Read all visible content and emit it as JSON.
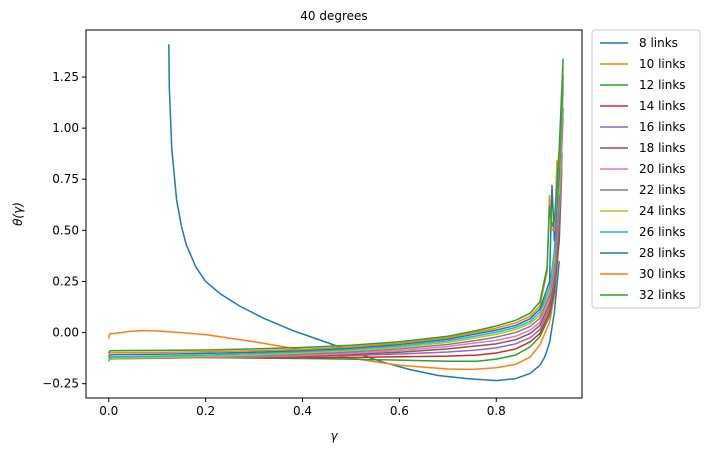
{
  "chart_data": {
    "type": "line",
    "title": "40 degrees",
    "xlabel": "γ",
    "ylabel": "θ(γ)",
    "xlim": [
      -0.047,
      0.977
    ],
    "ylim": [
      -0.32,
      1.48
    ],
    "xticks": [
      0.0,
      0.2,
      0.4,
      0.6,
      0.8
    ],
    "xtick_labels": [
      "0.0",
      "0.2",
      "0.4",
      "0.6",
      "0.8"
    ],
    "yticks": [
      -0.25,
      0.0,
      0.25,
      0.5,
      0.75,
      1.0,
      1.25
    ],
    "ytick_labels": [
      "−0.25",
      "0.00",
      "0.25",
      "0.50",
      "0.75",
      "1.00",
      "1.25"
    ],
    "grid": false,
    "legend_placement": "outside right, top",
    "series": [
      {
        "name": "8 links",
        "color": "#1f77b4",
        "x": [
          0.124,
          0.125,
          0.13,
          0.14,
          0.15,
          0.16,
          0.18,
          0.2,
          0.23,
          0.27,
          0.32,
          0.38,
          0.44,
          0.5,
          0.56,
          0.62,
          0.68,
          0.74,
          0.8,
          0.84,
          0.87,
          0.89,
          0.9,
          0.91,
          0.92,
          0.93
        ],
        "y": [
          1.41,
          1.2,
          0.9,
          0.65,
          0.52,
          0.43,
          0.32,
          0.25,
          0.19,
          0.13,
          0.07,
          0.01,
          -0.04,
          -0.09,
          -0.14,
          -0.18,
          -0.21,
          -0.225,
          -0.235,
          -0.225,
          -0.2,
          -0.16,
          -0.12,
          -0.05,
          0.1,
          0.35
        ]
      },
      {
        "name": "10 links",
        "color": "#ff7f0e",
        "x": [
          0.0,
          0.001,
          0.003,
          0.01,
          0.04,
          0.07,
          0.1,
          0.15,
          0.2,
          0.3,
          0.4,
          0.5,
          0.6,
          0.7,
          0.75,
          0.8,
          0.84,
          0.87,
          0.89,
          0.91,
          0.92,
          0.93,
          0.935
        ],
        "y": [
          -0.03,
          -0.01,
          -0.005,
          -0.005,
          0.005,
          0.01,
          0.008,
          0.0,
          -0.01,
          -0.045,
          -0.085,
          -0.125,
          -0.16,
          -0.178,
          -0.18,
          -0.172,
          -0.155,
          -0.12,
          -0.06,
          0.05,
          0.18,
          0.45,
          0.8
        ]
      },
      {
        "name": "12 links",
        "color": "#2ca02c",
        "x": [
          0.0,
          0.002,
          0.01,
          0.1,
          0.2,
          0.3,
          0.4,
          0.5,
          0.6,
          0.7,
          0.76,
          0.8,
          0.84,
          0.87,
          0.89,
          0.91,
          0.92,
          0.93,
          0.935
        ],
        "y": [
          -0.14,
          -0.125,
          -0.12,
          -0.12,
          -0.122,
          -0.125,
          -0.127,
          -0.13,
          -0.135,
          -0.14,
          -0.14,
          -0.13,
          -0.11,
          -0.07,
          -0.02,
          0.08,
          0.2,
          0.45,
          0.78
        ]
      },
      {
        "name": "14 links",
        "color": "#d62728",
        "x": [
          0.0,
          0.002,
          0.01,
          0.1,
          0.2,
          0.3,
          0.4,
          0.5,
          0.6,
          0.7,
          0.76,
          0.8,
          0.84,
          0.87,
          0.89,
          0.91,
          0.92,
          0.93,
          0.935
        ],
        "y": [
          -0.14,
          -0.125,
          -0.12,
          -0.12,
          -0.121,
          -0.122,
          -0.123,
          -0.122,
          -0.118,
          -0.115,
          -0.11,
          -0.1,
          -0.08,
          -0.045,
          -0.005,
          0.1,
          0.22,
          0.48,
          0.82
        ]
      },
      {
        "name": "16 links",
        "color": "#9467bd",
        "x": [
          0.0,
          0.002,
          0.01,
          0.1,
          0.2,
          0.3,
          0.4,
          0.5,
          0.6,
          0.7,
          0.76,
          0.8,
          0.84,
          0.87,
          0.89,
          0.91,
          0.92,
          0.93,
          0.936
        ],
        "y": [
          -0.14,
          -0.125,
          -0.12,
          -0.12,
          -0.12,
          -0.12,
          -0.118,
          -0.112,
          -0.105,
          -0.095,
          -0.085,
          -0.075,
          -0.055,
          -0.025,
          0.015,
          0.12,
          0.25,
          0.52,
          0.88
        ]
      },
      {
        "name": "18 links",
        "color": "#8c564b",
        "x": [
          0.0,
          0.002,
          0.01,
          0.1,
          0.2,
          0.3,
          0.4,
          0.5,
          0.6,
          0.7,
          0.76,
          0.8,
          0.84,
          0.87,
          0.89,
          0.91,
          0.92,
          0.93,
          0.937
        ],
        "y": [
          -0.14,
          -0.128,
          -0.125,
          -0.124,
          -0.122,
          -0.12,
          -0.116,
          -0.107,
          -0.096,
          -0.08,
          -0.065,
          -0.055,
          -0.035,
          -0.005,
          0.035,
          0.14,
          0.28,
          0.56,
          1.14
        ]
      },
      {
        "name": "20 links",
        "color": "#e377c2",
        "x": [
          0.0,
          0.002,
          0.01,
          0.1,
          0.2,
          0.3,
          0.4,
          0.5,
          0.6,
          0.7,
          0.76,
          0.8,
          0.84,
          0.87,
          0.89,
          0.91,
          0.92,
          0.93,
          0.938
        ],
        "y": [
          -0.14,
          -0.13,
          -0.128,
          -0.126,
          -0.122,
          -0.118,
          -0.112,
          -0.102,
          -0.088,
          -0.068,
          -0.05,
          -0.038,
          -0.018,
          0.012,
          0.05,
          0.16,
          0.3,
          0.6,
          1.05
        ]
      },
      {
        "name": "22 links",
        "color": "#7f7f7f",
        "x": [
          0.0,
          0.002,
          0.01,
          0.1,
          0.2,
          0.3,
          0.4,
          0.5,
          0.6,
          0.7,
          0.76,
          0.8,
          0.84,
          0.87,
          0.89,
          0.91,
          0.92,
          0.93,
          0.938
        ],
        "y": [
          -0.14,
          -0.13,
          -0.128,
          -0.125,
          -0.12,
          -0.114,
          -0.106,
          -0.095,
          -0.08,
          -0.058,
          -0.038,
          -0.022,
          0.0,
          0.03,
          0.07,
          0.18,
          0.33,
          0.64,
          1.1
        ]
      },
      {
        "name": "24 links",
        "color": "#bcbd22",
        "x": [
          0.0,
          0.002,
          0.01,
          0.1,
          0.2,
          0.3,
          0.4,
          0.5,
          0.6,
          0.7,
          0.76,
          0.8,
          0.84,
          0.87,
          0.89,
          0.91,
          0.92,
          0.925,
          0.93,
          0.938
        ],
        "y": [
          -0.14,
          -0.128,
          -0.125,
          -0.122,
          -0.117,
          -0.11,
          -0.1,
          -0.088,
          -0.072,
          -0.048,
          -0.025,
          -0.008,
          0.015,
          0.045,
          0.085,
          0.2,
          0.36,
          0.84,
          0.68,
          1.18
        ]
      },
      {
        "name": "26 links",
        "color": "#17becf",
        "x": [
          0.0,
          0.002,
          0.01,
          0.1,
          0.2,
          0.3,
          0.4,
          0.5,
          0.6,
          0.7,
          0.76,
          0.8,
          0.84,
          0.87,
          0.89,
          0.91,
          0.92,
          0.93,
          0.938
        ],
        "y": [
          -0.13,
          -0.12,
          -0.118,
          -0.115,
          -0.11,
          -0.103,
          -0.094,
          -0.082,
          -0.065,
          -0.04,
          -0.016,
          0.002,
          0.025,
          0.055,
          0.1,
          0.22,
          0.4,
          0.76,
          1.22
        ]
      },
      {
        "name": "28 links",
        "color": "#1f77b4",
        "x": [
          0.0,
          0.002,
          0.01,
          0.1,
          0.2,
          0.3,
          0.4,
          0.5,
          0.6,
          0.7,
          0.76,
          0.8,
          0.84,
          0.87,
          0.89,
          0.91,
          0.915,
          0.92,
          0.93,
          0.938
        ],
        "y": [
          -0.12,
          -0.11,
          -0.108,
          -0.106,
          -0.102,
          -0.096,
          -0.088,
          -0.076,
          -0.058,
          -0.032,
          -0.006,
          0.012,
          0.035,
          0.068,
          0.115,
          0.25,
          0.72,
          0.45,
          0.8,
          1.26
        ]
      },
      {
        "name": "30 links",
        "color": "#ff7f0e",
        "x": [
          0.0,
          0.002,
          0.01,
          0.1,
          0.2,
          0.3,
          0.4,
          0.5,
          0.6,
          0.7,
          0.76,
          0.8,
          0.84,
          0.87,
          0.89,
          0.905,
          0.91,
          0.915,
          0.92,
          0.93,
          0.938
        ],
        "y": [
          -0.11,
          -0.1,
          -0.098,
          -0.097,
          -0.094,
          -0.089,
          -0.082,
          -0.07,
          -0.052,
          -0.025,
          0.002,
          0.022,
          0.047,
          0.08,
          0.13,
          0.3,
          0.67,
          0.5,
          0.5,
          0.85,
          1.3
        ]
      },
      {
        "name": "32 links",
        "color": "#2ca02c",
        "x": [
          0.0,
          0.002,
          0.01,
          0.1,
          0.2,
          0.3,
          0.4,
          0.5,
          0.6,
          0.7,
          0.76,
          0.8,
          0.84,
          0.87,
          0.89,
          0.905,
          0.91,
          0.915,
          0.92,
          0.93,
          0.938
        ],
        "y": [
          -0.1,
          -0.09,
          -0.088,
          -0.087,
          -0.085,
          -0.08,
          -0.073,
          -0.062,
          -0.045,
          -0.018,
          0.01,
          0.032,
          0.06,
          0.095,
          0.15,
          0.32,
          0.62,
          0.52,
          0.55,
          0.9,
          1.34
        ]
      }
    ]
  }
}
